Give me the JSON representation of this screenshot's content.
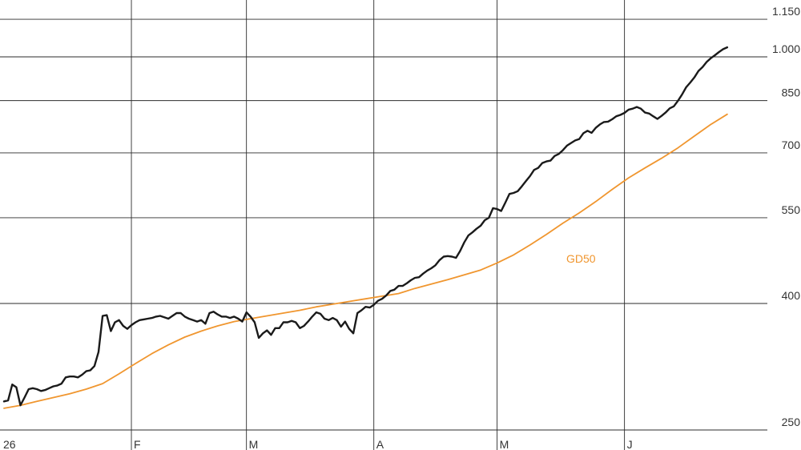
{
  "chart_data": {
    "type": "line",
    "title": "",
    "xlabel": "",
    "ylabel": "",
    "y_scale": "log",
    "grid": true,
    "y_ticks": [
      250,
      400,
      550,
      700,
      850,
      1000,
      1150
    ],
    "y_tick_labels": [
      "250",
      "400",
      "550",
      "700",
      "850",
      "1.000",
      "1.150"
    ],
    "x_ticks": [
      {
        "label": "26",
        "x": 0
      },
      {
        "label": "F",
        "x": 31
      },
      {
        "label": "M",
        "x": 59
      },
      {
        "label": "A",
        "x": 90
      },
      {
        "label": "M",
        "x": 120
      },
      {
        "label": "J",
        "x": 151
      }
    ],
    "series": [
      {
        "role": "price",
        "color": "#1a1a1a",
        "x": [
          0,
          1,
          2,
          3,
          4,
          5,
          6,
          7,
          8,
          9,
          10,
          11,
          12,
          13,
          14,
          15,
          16,
          17,
          18,
          19,
          20,
          21,
          22,
          23,
          24,
          25,
          26,
          27,
          28,
          29,
          30,
          31,
          32,
          33,
          34,
          35,
          36,
          37,
          38,
          39,
          40,
          41,
          42,
          43,
          44,
          45,
          46,
          47,
          48,
          49,
          50,
          51,
          52,
          53,
          54,
          55,
          56,
          57,
          58,
          59,
          60,
          61,
          62,
          63,
          64,
          65,
          66,
          67,
          68,
          69,
          70,
          71,
          72,
          73,
          74,
          75,
          76,
          77,
          78,
          79,
          80,
          81,
          82,
          83,
          84,
          85,
          86,
          87,
          88,
          89,
          90,
          91,
          92,
          93,
          94,
          95,
          96,
          97,
          98,
          99,
          100,
          101,
          102,
          103,
          104,
          105,
          106,
          107,
          108,
          109,
          110,
          111,
          112,
          113,
          114,
          115,
          116,
          117,
          118,
          119,
          120,
          121,
          122,
          123,
          124,
          125,
          126,
          127,
          128,
          129,
          130,
          131,
          132,
          133,
          134,
          135,
          136,
          137,
          138,
          139,
          140,
          141,
          142,
          143,
          144,
          145,
          146,
          147,
          148,
          149,
          150,
          151,
          152,
          153,
          154,
          155,
          156,
          157,
          158,
          159,
          160,
          161,
          162,
          163,
          164,
          165,
          166,
          167,
          168,
          169,
          170,
          171,
          172,
          173,
          174,
          175,
          176
        ],
        "values": [
          278,
          279,
          296,
          293,
          274,
          282,
          291,
          292,
          291,
          289,
          290,
          292,
          294,
          295,
          297,
          304,
          305,
          305,
          304,
          307,
          311,
          312,
          317,
          334,
          382,
          383,
          361,
          373,
          376,
          368,
          364,
          369,
          373,
          376,
          377,
          378,
          379,
          381,
          382,
          380,
          378,
          382,
          386,
          386,
          381,
          378,
          376,
          374,
          376,
          371,
          386,
          388,
          384,
          381,
          381,
          379,
          381,
          378,
          374,
          387,
          381,
          373,
          352,
          358,
          362,
          356,
          365,
          365,
          373,
          373,
          375,
          373,
          365,
          368,
          374,
          381,
          387,
          385,
          378,
          376,
          379,
          376,
          367,
          374,
          364,
          358,
          386,
          390,
          395,
          394,
          398,
          404,
          407,
          412,
          419,
          421,
          427,
          427,
          431,
          436,
          440,
          441,
          447,
          452,
          456,
          461,
          470,
          476,
          477,
          476,
          474,
          486,
          502,
          515,
          521,
          528,
          534,
          545,
          550,
          570,
          568,
          564,
          582,
          601,
          603,
          607,
          618,
          630,
          642,
          657,
          662,
          674,
          678,
          680,
          692,
          697,
          707,
          719,
          726,
          733,
          737,
          753,
          760,
          754,
          768,
          778,
          785,
          786,
          793,
          802,
          806,
          812,
          822,
          825,
          830,
          825,
          813,
          810,
          802,
          794,
          803,
          813,
          826,
          832,
          849,
          869,
          893,
          909,
          926,
          949,
          963,
          981,
          995,
          1006,
          1018,
          1029,
          1036
        ]
      },
      {
        "role": "moving-average",
        "name": "GD50",
        "color": "#f0962f",
        "x": [
          0,
          4,
          8,
          12,
          16,
          20,
          24,
          28,
          32,
          36,
          40,
          44,
          48,
          52,
          56,
          60,
          64,
          68,
          72,
          76,
          80,
          84,
          88,
          92,
          96,
          100,
          104,
          108,
          112,
          116,
          120,
          124,
          128,
          132,
          136,
          140,
          144,
          148,
          152,
          156,
          160,
          164,
          168,
          172,
          176
        ],
        "values": [
          271,
          274,
          278,
          282,
          286,
          291,
          297,
          308,
          320,
          332,
          343,
          353,
          361,
          368,
          374,
          378,
          382,
          386,
          390,
          395,
          399,
          403,
          407,
          411,
          415,
          423,
          430,
          437,
          445,
          453,
          465,
          479,
          497,
          517,
          539,
          560,
          584,
          611,
          638,
          662,
          686,
          713,
          745,
          778,
          808
        ]
      }
    ],
    "annotations": [
      {
        "text": "GD50",
        "series": "moving-average"
      }
    ]
  }
}
